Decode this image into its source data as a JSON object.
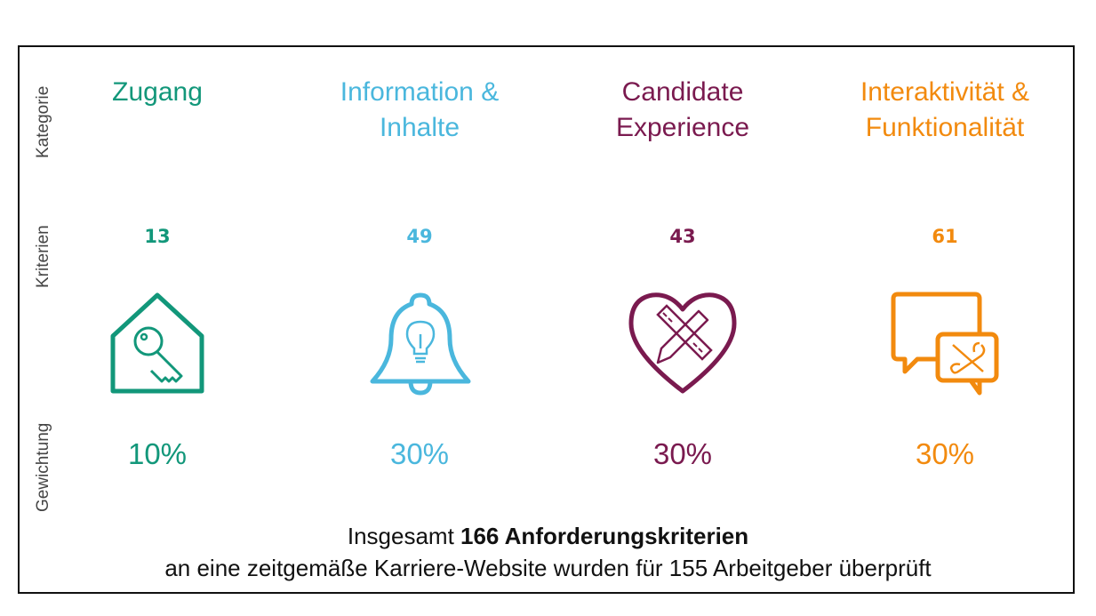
{
  "side_labels": {
    "kategorie": "Kategorie",
    "kriterien": "Kriterien",
    "gewichtung": "Gewichtung"
  },
  "categories": [
    {
      "title_line1": "Zugang",
      "title_line2": "",
      "criteria": "13",
      "weight": "10%",
      "color": "#12977a",
      "icon": "house-key-icon"
    },
    {
      "title_line1": "Information &",
      "title_line2": "Inhalte",
      "criteria": "49",
      "weight": "30%",
      "color": "#4ab7dd",
      "icon": "bell-lightbulb-icon"
    },
    {
      "title_line1": "Candidate",
      "title_line2": "Experience",
      "criteria": "43",
      "weight": "30%",
      "color": "#7a1a4f",
      "icon": "heart-pencil-ruler-icon"
    },
    {
      "title_line1": "Interaktivität &",
      "title_line2": "Funktionalität",
      "criteria": "61",
      "weight": "30%",
      "color": "#f28a0e",
      "icon": "chat-tools-icon"
    }
  ],
  "summary": {
    "prefix": "Insgesamt ",
    "bold": "166 Anforderungskriterien",
    "line2": "an eine zeitgemäße Karriere-Website wurden für 155 Arbeitgeber überprüft"
  }
}
